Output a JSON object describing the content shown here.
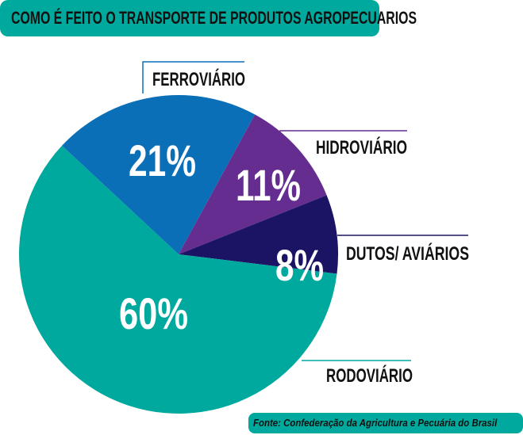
{
  "chart_data": {
    "type": "pie",
    "title": "COMO É FEITO O TRANSPORTE DE PRODUTOS AGROPECUARIOS",
    "source": "Fonte: Confederação da Agricultura e  Pecuária do Brasil",
    "slices": [
      {
        "label": "FERROVIÁRIO",
        "value": 21,
        "value_label": "21%",
        "color": "#0a6fb7"
      },
      {
        "label": "HIDROVIÁRIO",
        "value": 11,
        "value_label": "11%",
        "color": "#662d91"
      },
      {
        "label": "DUTOS/ AVIÁRIOS",
        "value": 8,
        "value_label": "8%",
        "color": "#1b1464"
      },
      {
        "label": "RODOVIÁRIO",
        "value": 60,
        "value_label": "60%",
        "color": "#00a99d"
      }
    ]
  }
}
